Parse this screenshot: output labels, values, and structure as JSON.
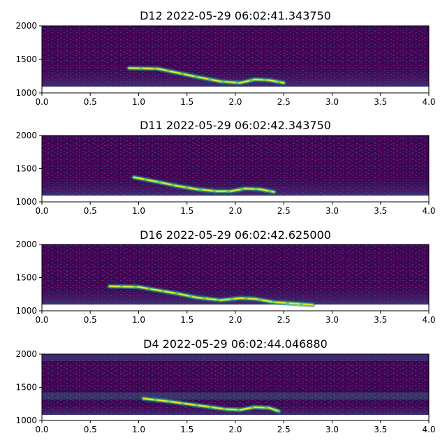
{
  "chart_data": [
    {
      "type": "heatmap",
      "title": "D12 2022-05-29 06:02:41.343750",
      "xlim": [
        0.0,
        4.0
      ],
      "ylim": [
        1000,
        2000
      ],
      "xticks": [
        "0.0",
        "0.5",
        "1.0",
        "1.5",
        "2.0",
        "2.5",
        "3.0",
        "3.5",
        "4.0"
      ],
      "yticks": [
        "1000",
        "1500",
        "2000"
      ],
      "colormap": "viridis",
      "grid": false,
      "call_trace": [
        [
          0.9,
          1370
        ],
        [
          1.2,
          1360
        ],
        [
          1.4,
          1300
        ],
        [
          1.6,
          1240
        ],
        [
          1.85,
          1170
        ],
        [
          2.05,
          1150
        ],
        [
          2.2,
          1200
        ],
        [
          2.35,
          1190
        ],
        [
          2.5,
          1150
        ]
      ]
    },
    {
      "type": "heatmap",
      "title": "D11 2022-05-29 06:02:42.343750",
      "xlim": [
        0.0,
        4.0
      ],
      "ylim": [
        1000,
        2000
      ],
      "xticks": [
        "0.0",
        "0.5",
        "1.0",
        "1.5",
        "2.0",
        "2.5",
        "3.0",
        "3.5",
        "4.0"
      ],
      "yticks": [
        "1000",
        "1500",
        "2000"
      ],
      "colormap": "viridis",
      "grid": false,
      "call_trace": [
        [
          0.95,
          1370
        ],
        [
          1.2,
          1300
        ],
        [
          1.4,
          1240
        ],
        [
          1.6,
          1190
        ],
        [
          1.8,
          1160
        ],
        [
          1.95,
          1160
        ],
        [
          2.1,
          1200
        ],
        [
          2.25,
          1190
        ],
        [
          2.4,
          1150
        ]
      ]
    },
    {
      "type": "heatmap",
      "title": "D16 2022-05-29 06:02:42.625000",
      "xlim": [
        0.0,
        4.0
      ],
      "ylim": [
        1000,
        2000
      ],
      "xticks": [
        "0.0",
        "0.5",
        "1.0",
        "1.5",
        "2.0",
        "2.5",
        "3.0",
        "3.5",
        "4.0"
      ],
      "yticks": [
        "1000",
        "1500",
        "2000"
      ],
      "colormap": "viridis",
      "grid": false,
      "call_trace": [
        [
          0.7,
          1370
        ],
        [
          1.0,
          1360
        ],
        [
          1.2,
          1310
        ],
        [
          1.4,
          1260
        ],
        [
          1.6,
          1200
        ],
        [
          1.85,
          1160
        ],
        [
          2.05,
          1190
        ],
        [
          2.2,
          1180
        ],
        [
          2.4,
          1130
        ],
        [
          2.8,
          1090
        ]
      ]
    },
    {
      "type": "heatmap",
      "title": "D4 2022-05-29 06:02:44.046880",
      "xlim": [
        0.0,
        4.0
      ],
      "ylim": [
        1000,
        2000
      ],
      "xticks": [
        "0.0",
        "0.5",
        "1.0",
        "1.5",
        "2.0",
        "2.5",
        "3.0",
        "3.5",
        "4.0"
      ],
      "yticks": [
        "1000",
        "1500",
        "2000"
      ],
      "colormap": "viridis",
      "grid": false,
      "call_trace": [
        [
          1.05,
          1330
        ],
        [
          1.3,
          1290
        ],
        [
          1.5,
          1250
        ],
        [
          1.7,
          1210
        ],
        [
          1.9,
          1170
        ],
        [
          2.05,
          1160
        ],
        [
          2.2,
          1200
        ],
        [
          2.35,
          1190
        ],
        [
          2.45,
          1140
        ]
      ]
    }
  ]
}
